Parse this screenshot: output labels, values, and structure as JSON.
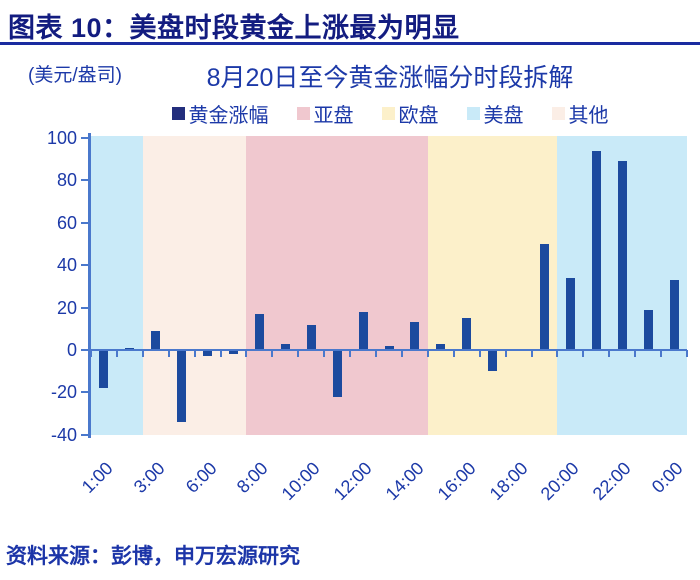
{
  "header": {
    "title": "图表 10：美盘时段黄金上涨最为明显"
  },
  "footer": {
    "source": "资料来源：彭博，申万宏源研究"
  },
  "chart": {
    "units_label": "(美元/盎司)",
    "title": "8月20日至今黄金涨幅分时段拆解"
  },
  "legend": [
    {
      "label": "黄金涨幅",
      "color": "#232E7D"
    },
    {
      "label": "亚盘",
      "color": "#F0C8CF"
    },
    {
      "label": "欧盘",
      "color": "#FCF0CA"
    },
    {
      "label": "美盘",
      "color": "#C9EAF8"
    },
    {
      "label": "其他",
      "color": "#FBEEE6"
    }
  ],
  "chart_data": {
    "type": "bar",
    "title": "8月20日至今黄金涨幅分时段拆解",
    "ylabel": "(美元/盎司)",
    "series_name": "黄金涨幅",
    "ylim": [
      -40,
      100
    ],
    "y_ticks": [
      100,
      80,
      60,
      40,
      20,
      0,
      -20,
      -40
    ],
    "grid": false,
    "legend_position": "top",
    "categories": [
      "1:00",
      "2:00",
      "3:00",
      "4:00",
      "6:00",
      "7:00",
      "8:00",
      "9:00",
      "10:00",
      "11:00",
      "12:00",
      "13:00",
      "14:00",
      "15:00",
      "16:00",
      "17:00",
      "18:00",
      "19:00",
      "20:00",
      "21:00",
      "22:00",
      "23:00",
      "0:00"
    ],
    "x_labels_shown": [
      "1:00",
      "3:00",
      "6:00",
      "8:00",
      "10:00",
      "12:00",
      "14:00",
      "16:00",
      "18:00",
      "20:00",
      "22:00",
      "0:00"
    ],
    "values": [
      -18,
      1,
      9,
      -34,
      -3,
      -2,
      17,
      3,
      12,
      -22,
      18,
      2,
      13,
      3,
      15,
      -10,
      0,
      50,
      34,
      94,
      89,
      19,
      33
    ],
    "bar_color": "#1C4A9E",
    "axis_color": "#4A78CC",
    "bands": [
      {
        "label": "美盘",
        "start_index": 0,
        "end_index": 2,
        "color": "#C9EAF8"
      },
      {
        "label": "其他",
        "start_index": 2,
        "end_index": 6,
        "color": "#FBEEE6"
      },
      {
        "label": "亚盘",
        "start_index": 6,
        "end_index": 13,
        "color": "#F0C8CF"
      },
      {
        "label": "欧盘",
        "start_index": 13,
        "end_index": 18,
        "color": "#FCF0CA"
      },
      {
        "label": "美盘",
        "start_index": 18,
        "end_index": 23,
        "color": "#C9EAF8"
      }
    ]
  }
}
